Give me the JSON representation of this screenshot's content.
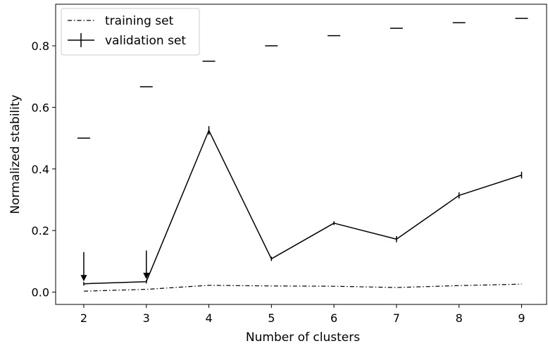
{
  "chart_data": {
    "type": "line",
    "xlabel": "Number of clusters",
    "ylabel": "Normalized stability",
    "x": [
      2,
      3,
      4,
      5,
      6,
      7,
      8,
      9
    ],
    "xlim": [
      1.55,
      9.4
    ],
    "ylim": [
      -0.04,
      0.935
    ],
    "xticks": [
      "2",
      "3",
      "4",
      "5",
      "6",
      "7",
      "8",
      "9"
    ],
    "yticks": [
      {
        "value": 0.0,
        "label": "0.0"
      },
      {
        "value": 0.2,
        "label": "0.2"
      },
      {
        "value": 0.4,
        "label": "0.4"
      },
      {
        "value": 0.6,
        "label": "0.6"
      },
      {
        "value": 0.8,
        "label": "0.8"
      }
    ],
    "grid": false,
    "legend_position": "top-left",
    "series": [
      {
        "name": "training set",
        "style": "dash-dot",
        "values": [
          0.003,
          0.009,
          0.022,
          0.02,
          0.019,
          0.015,
          0.021,
          0.026
        ]
      },
      {
        "name": "validation set",
        "style": "solid-errorbar",
        "values": [
          0.027,
          0.034,
          0.525,
          0.108,
          0.224,
          0.172,
          0.314,
          0.38
        ],
        "errors": [
          0.002,
          0.002,
          0.014,
          0.007,
          0.006,
          0.01,
          0.01,
          0.011
        ]
      }
    ],
    "reference_markers": {
      "x": [
        2,
        3,
        4,
        5,
        6,
        7,
        8,
        9
      ],
      "values": [
        0.5,
        0.667,
        0.75,
        0.8,
        0.833,
        0.857,
        0.875,
        0.889
      ]
    },
    "annotations": [
      {
        "type": "arrow-down",
        "x": 2,
        "from": 0.13,
        "to": 0.035
      },
      {
        "type": "arrow-down",
        "x": 3,
        "from": 0.135,
        "to": 0.042
      }
    ],
    "colors": {
      "line": "#000000",
      "background": "#ffffff"
    }
  }
}
